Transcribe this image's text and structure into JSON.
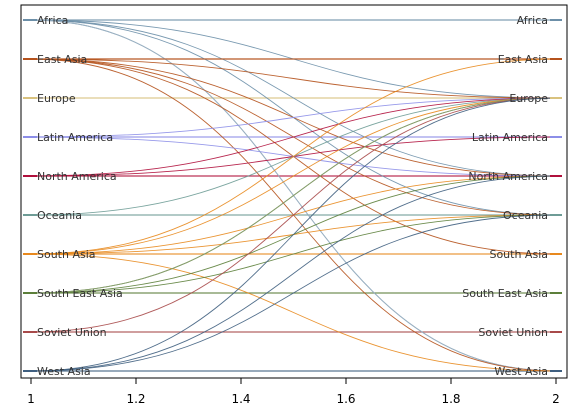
{
  "chart_data": {
    "type": "line",
    "title": "",
    "xlabel": "",
    "ylabel": "",
    "xlim": [
      1,
      2
    ],
    "grid": "horizontal",
    "x_ticks": [
      "1",
      "1.2",
      "1.4",
      "1.6",
      "1.8",
      "2"
    ],
    "regions": [
      {
        "name": "Africa",
        "color": "#6c8fa8"
      },
      {
        "name": "East Asia",
        "color": "#b5521c"
      },
      {
        "name": "Europe",
        "color": "#d9c27e"
      },
      {
        "name": "Latin America",
        "color": "#8c8ee8"
      },
      {
        "name": "North America",
        "color": "#b0103c"
      },
      {
        "name": "Oceania",
        "color": "#6e9c96"
      },
      {
        "name": "South Asia",
        "color": "#e8891e"
      },
      {
        "name": "South East Asia",
        "color": "#5c7f3a"
      },
      {
        "name": "Soviet Union",
        "color": "#a84a4a"
      },
      {
        "name": "West Asia",
        "color": "#3f5f80"
      }
    ],
    "flows": [
      {
        "from": "Africa",
        "to": "Europe",
        "color": "#6c8fa8"
      },
      {
        "from": "Africa",
        "to": "North America",
        "color": "#6c8fa8"
      },
      {
        "from": "Africa",
        "to": "Oceania",
        "color": "#6c8fa8"
      },
      {
        "from": "Africa",
        "to": "West Asia",
        "color": "#6c8fa8"
      },
      {
        "from": "Africa",
        "to": "West Asia",
        "color": "#9fb4c4"
      },
      {
        "from": "East Asia",
        "to": "East Asia",
        "color": "#b5521c"
      },
      {
        "from": "East Asia",
        "to": "Europe",
        "color": "#b5521c"
      },
      {
        "from": "East Asia",
        "to": "North America",
        "color": "#b5521c"
      },
      {
        "from": "East Asia",
        "to": "Oceania",
        "color": "#b5521c"
      },
      {
        "from": "East Asia",
        "to": "South Asia",
        "color": "#b5521c"
      },
      {
        "from": "East Asia",
        "to": "West Asia",
        "color": "#b5521c"
      },
      {
        "from": "Latin America",
        "to": "Europe",
        "color": "#8c8ee8"
      },
      {
        "from": "Latin America",
        "to": "North America",
        "color": "#8c8ee8"
      },
      {
        "from": "North America",
        "to": "Europe",
        "color": "#b0103c"
      },
      {
        "from": "North America",
        "to": "Latin America",
        "color": "#b0103c"
      },
      {
        "from": "Oceania",
        "to": "Europe",
        "color": "#6e9c96"
      },
      {
        "from": "South Asia",
        "to": "East Asia",
        "color": "#e8891e"
      },
      {
        "from": "South Asia",
        "to": "Europe",
        "color": "#e8891e"
      },
      {
        "from": "South Asia",
        "to": "North America",
        "color": "#e8891e"
      },
      {
        "from": "South Asia",
        "to": "Oceania",
        "color": "#e8891e"
      },
      {
        "from": "South Asia",
        "to": "West Asia",
        "color": "#e8891e"
      },
      {
        "from": "South East Asia",
        "to": "Europe",
        "color": "#5c7f3a"
      },
      {
        "from": "South East Asia",
        "to": "North America",
        "color": "#5c7f3a"
      },
      {
        "from": "South East Asia",
        "to": "Oceania",
        "color": "#5c7f3a"
      },
      {
        "from": "South East Asia",
        "to": "Europe",
        "color": "#8aa070"
      },
      {
        "from": "Soviet Union",
        "to": "Europe",
        "color": "#a84a4a"
      },
      {
        "from": "West Asia",
        "to": "Europe",
        "color": "#3f5f80"
      },
      {
        "from": "West Asia",
        "to": "North America",
        "color": "#3f5f80"
      },
      {
        "from": "West Asia",
        "to": "Oceania",
        "color": "#3f5f80"
      }
    ]
  }
}
